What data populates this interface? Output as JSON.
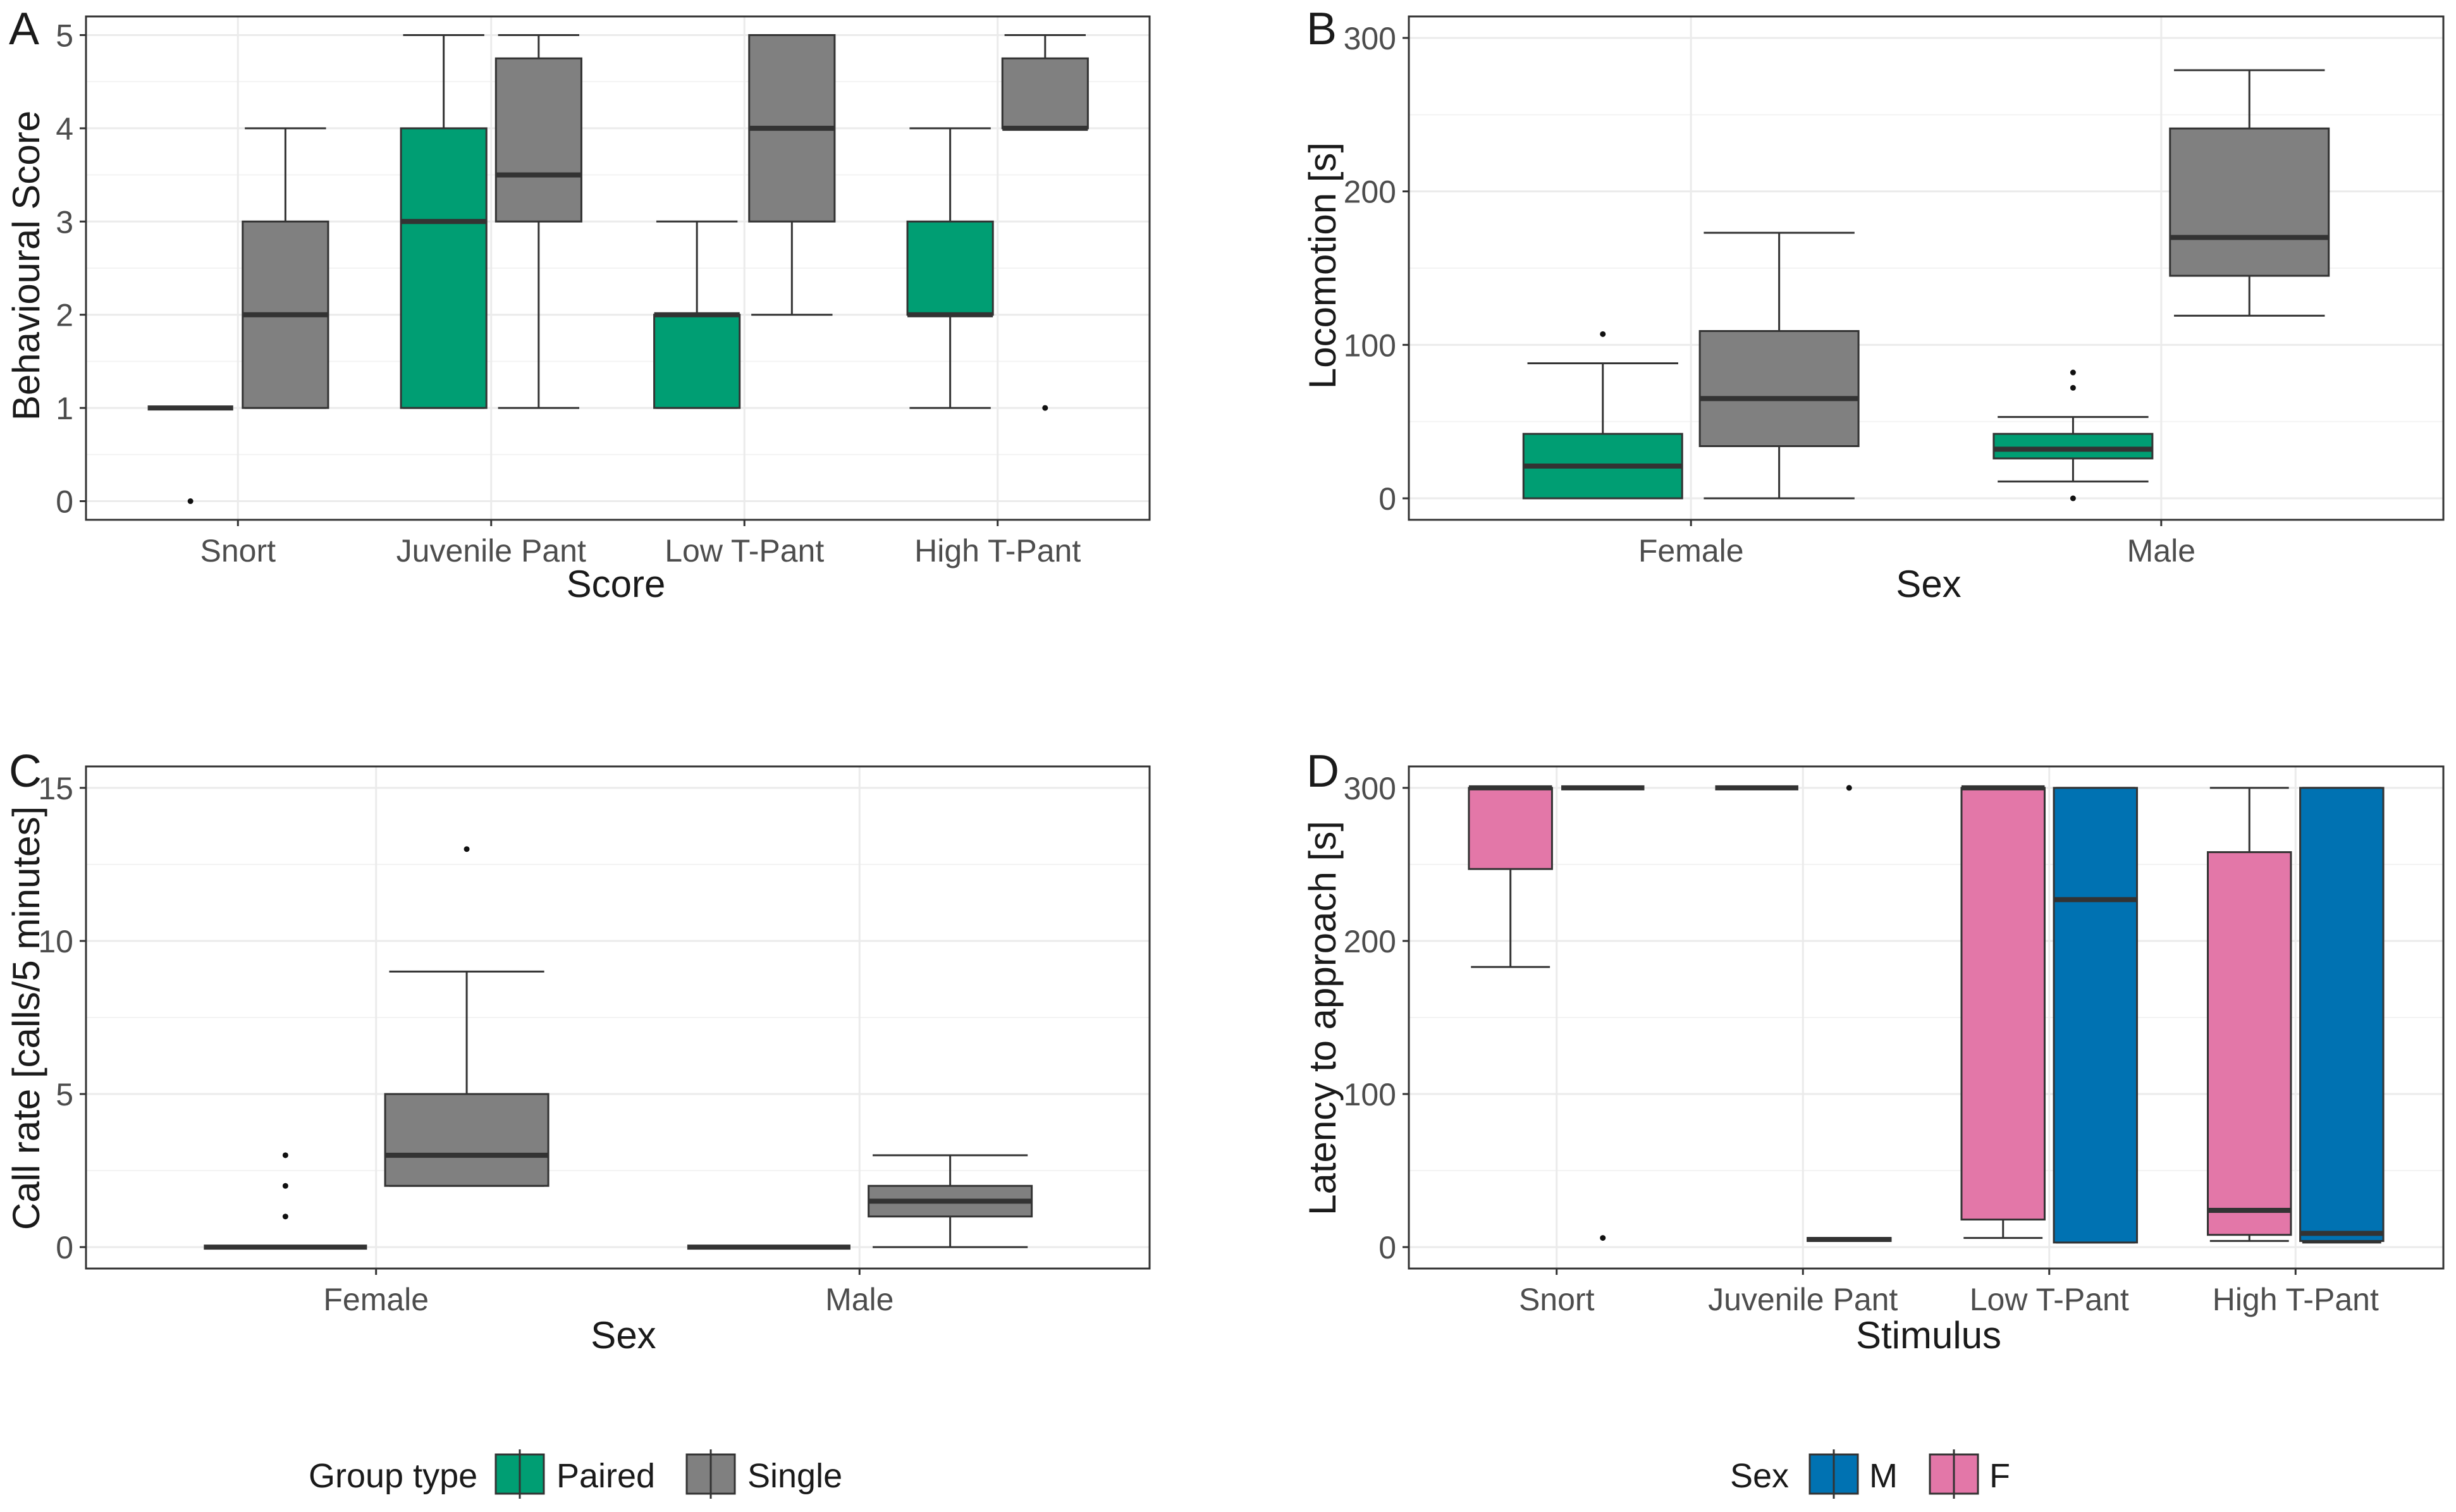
{
  "colors": {
    "paired": "#009E73",
    "single": "#808080",
    "male": "#0072B2",
    "female": "#E377A8",
    "box_stroke": "#333333",
    "grid": "#ebebeb",
    "panel_border": "#333333"
  },
  "chart_data": [
    {
      "panel": "A",
      "type": "boxplot",
      "xlabel": "Score",
      "ylabel": "Behavioural Score",
      "ylim": [
        -0.2,
        5.2
      ],
      "yticks": [
        0,
        1,
        2,
        3,
        4,
        5
      ],
      "ytick_labels": [
        "0",
        "1",
        "2",
        "3",
        "4",
        "5"
      ],
      "categories": [
        "Snort",
        "Juvenile Pant",
        "Low T-Pant",
        "High T-Pant"
      ],
      "series": [
        {
          "name": "Paired",
          "color_key": "paired",
          "boxes": [
            {
              "q1": 1,
              "median": 1,
              "q3": 1,
              "whisker_low": 1,
              "whisker_high": 1,
              "outliers": [
                0
              ]
            },
            {
              "q1": 1,
              "median": 3,
              "q3": 4,
              "whisker_low": 1,
              "whisker_high": 5,
              "outliers": []
            },
            {
              "q1": 1,
              "median": 2,
              "q3": 2,
              "whisker_low": 1,
              "whisker_high": 3,
              "outliers": []
            },
            {
              "q1": 2,
              "median": 2,
              "q3": 3,
              "whisker_low": 1,
              "whisker_high": 4,
              "outliers": []
            }
          ]
        },
        {
          "name": "Single",
          "color_key": "single",
          "boxes": [
            {
              "q1": 1,
              "median": 2,
              "q3": 3,
              "whisker_low": 1,
              "whisker_high": 4,
              "outliers": []
            },
            {
              "q1": 3,
              "median": 3.5,
              "q3": 4.75,
              "whisker_low": 1,
              "whisker_high": 5,
              "outliers": []
            },
            {
              "q1": 3,
              "median": 4,
              "q3": 5,
              "whisker_low": 2,
              "whisker_high": 5,
              "outliers": []
            },
            {
              "q1": 4,
              "median": 4,
              "q3": 4.75,
              "whisker_low": 4,
              "whisker_high": 5,
              "outliers": [
                1
              ]
            }
          ]
        }
      ]
    },
    {
      "panel": "B",
      "type": "boxplot",
      "xlabel": "Sex",
      "ylabel": "Locomotion [s]",
      "ylim": [
        -14,
        314
      ],
      "yticks": [
        0,
        100,
        200,
        300
      ],
      "ytick_labels": [
        "0",
        "100",
        "200",
        "300"
      ],
      "categories": [
        "Female",
        "Male"
      ],
      "series": [
        {
          "name": "Paired",
          "color_key": "paired",
          "boxes": [
            {
              "q1": 0,
              "median": 21,
              "q3": 42,
              "whisker_low": 0,
              "whisker_high": 88,
              "outliers": [
                107
              ]
            },
            {
              "q1": 26,
              "median": 32,
              "q3": 42,
              "whisker_low": 11,
              "whisker_high": 53,
              "outliers": [
                0,
                72,
                82
              ]
            }
          ]
        },
        {
          "name": "Single",
          "color_key": "single",
          "boxes": [
            {
              "q1": 34,
              "median": 65,
              "q3": 109,
              "whisker_low": 0,
              "whisker_high": 173,
              "outliers": []
            },
            {
              "q1": 145,
              "median": 170,
              "q3": 241,
              "whisker_low": 119,
              "whisker_high": 279,
              "outliers": []
            }
          ]
        }
      ]
    },
    {
      "panel": "C",
      "type": "boxplot",
      "xlabel": "Sex",
      "ylabel": "Call rate [calls/5 minutes]",
      "ylim": [
        -0.7,
        15.7
      ],
      "yticks": [
        0,
        5,
        10,
        15
      ],
      "ytick_labels": [
        "0",
        "5",
        "10",
        "15"
      ],
      "categories": [
        "Female",
        "Male"
      ],
      "series": [
        {
          "name": "Paired",
          "color_key": "paired",
          "boxes": [
            {
              "q1": 0,
              "median": 0,
              "q3": 0,
              "whisker_low": 0,
              "whisker_high": 0,
              "outliers": [
                1,
                2,
                3
              ]
            },
            {
              "q1": 0,
              "median": 0,
              "q3": 0,
              "whisker_low": 0,
              "whisker_high": 0,
              "outliers": []
            }
          ]
        },
        {
          "name": "Single",
          "color_key": "single",
          "boxes": [
            {
              "q1": 2,
              "median": 3,
              "q3": 5,
              "whisker_low": 2,
              "whisker_high": 9,
              "outliers": [
                13
              ]
            },
            {
              "q1": 1,
              "median": 1.5,
              "q3": 2,
              "whisker_low": 0,
              "whisker_high": 3,
              "outliers": []
            }
          ]
        }
      ]
    },
    {
      "panel": "D",
      "type": "boxplot",
      "xlabel": "Stimulus",
      "ylabel": "Latency to approach [s]",
      "ylim": [
        -14,
        314
      ],
      "yticks": [
        0,
        100,
        200,
        300
      ],
      "ytick_labels": [
        "0",
        "100",
        "200",
        "300"
      ],
      "categories": [
        "Snort",
        "Juvenile Pant",
        "Low T-Pant",
        "High T-Pant"
      ],
      "series": [
        {
          "name": "F",
          "color_key": "female",
          "boxes": [
            {
              "q1": 247,
              "median": 300,
              "q3": 300,
              "whisker_low": 183,
              "whisker_high": 300,
              "outliers": []
            },
            {
              "q1": 300,
              "median": 300,
              "q3": 300,
              "whisker_low": 300,
              "whisker_high": 300,
              "outliers": []
            },
            {
              "q1": 18,
              "median": 300,
              "q3": 300,
              "whisker_low": 6,
              "whisker_high": 300,
              "outliers": []
            },
            {
              "q1": 8,
              "median": 24,
              "q3": 258,
              "whisker_low": 4,
              "whisker_high": 300,
              "outliers": []
            }
          ]
        },
        {
          "name": "M",
          "color_key": "male",
          "boxes": [
            {
              "q1": 300,
              "median": 300,
              "q3": 300,
              "whisker_low": 300,
              "whisker_high": 300,
              "outliers": [
                6
              ]
            },
            {
              "q1": 4,
              "median": 5,
              "q3": 6,
              "whisker_low": 4,
              "whisker_high": 6,
              "outliers": [
                300
              ]
            },
            {
              "q1": 3,
              "median": 227,
              "q3": 300,
              "whisker_low": 3,
              "whisker_high": 300,
              "outliers": []
            },
            {
              "q1": 4,
              "median": 9,
              "q3": 300,
              "whisker_low": 3,
              "whisker_high": 300,
              "outliers": []
            }
          ]
        }
      ]
    }
  ],
  "legends": [
    {
      "title": "Group type",
      "items": [
        {
          "label": "Paired",
          "color_key": "paired"
        },
        {
          "label": "Single",
          "color_key": "single"
        }
      ]
    },
    {
      "title": "Sex",
      "items": [
        {
          "label": "M",
          "color_key": "male"
        },
        {
          "label": "F",
          "color_key": "female"
        }
      ]
    }
  ]
}
